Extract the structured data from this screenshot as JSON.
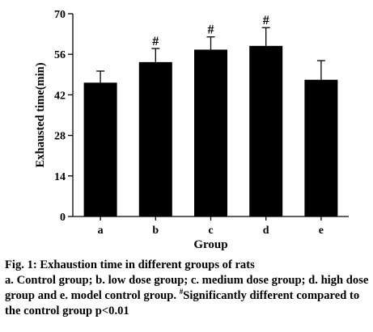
{
  "chart_data": {
    "type": "bar",
    "xlabel": "Group",
    "ylabel": "Exhausted time(min)",
    "categories": [
      "a",
      "b",
      "c",
      "d",
      "e"
    ],
    "values": [
      46.2,
      53.3,
      57.6,
      58.9,
      47.2
    ],
    "errors": [
      4.0,
      4.7,
      4.4,
      6.3,
      6.6
    ],
    "significance": [
      "",
      "#",
      "#",
      "#",
      ""
    ],
    "ylim": [
      0,
      70
    ],
    "yticks": [
      0,
      14,
      28,
      42,
      56,
      70
    ],
    "grid": false,
    "bar_color": "#000000"
  },
  "caption": {
    "title": "Fig. 1: Exhaustion time in different groups of rats",
    "body_before_mark": "a. Control group; b. low dose group; c. medium dose group; d. high dose group and e. model control group. ",
    "mark": "#",
    "body_after_mark": "Significantly different compared to the control group p<0.01"
  }
}
